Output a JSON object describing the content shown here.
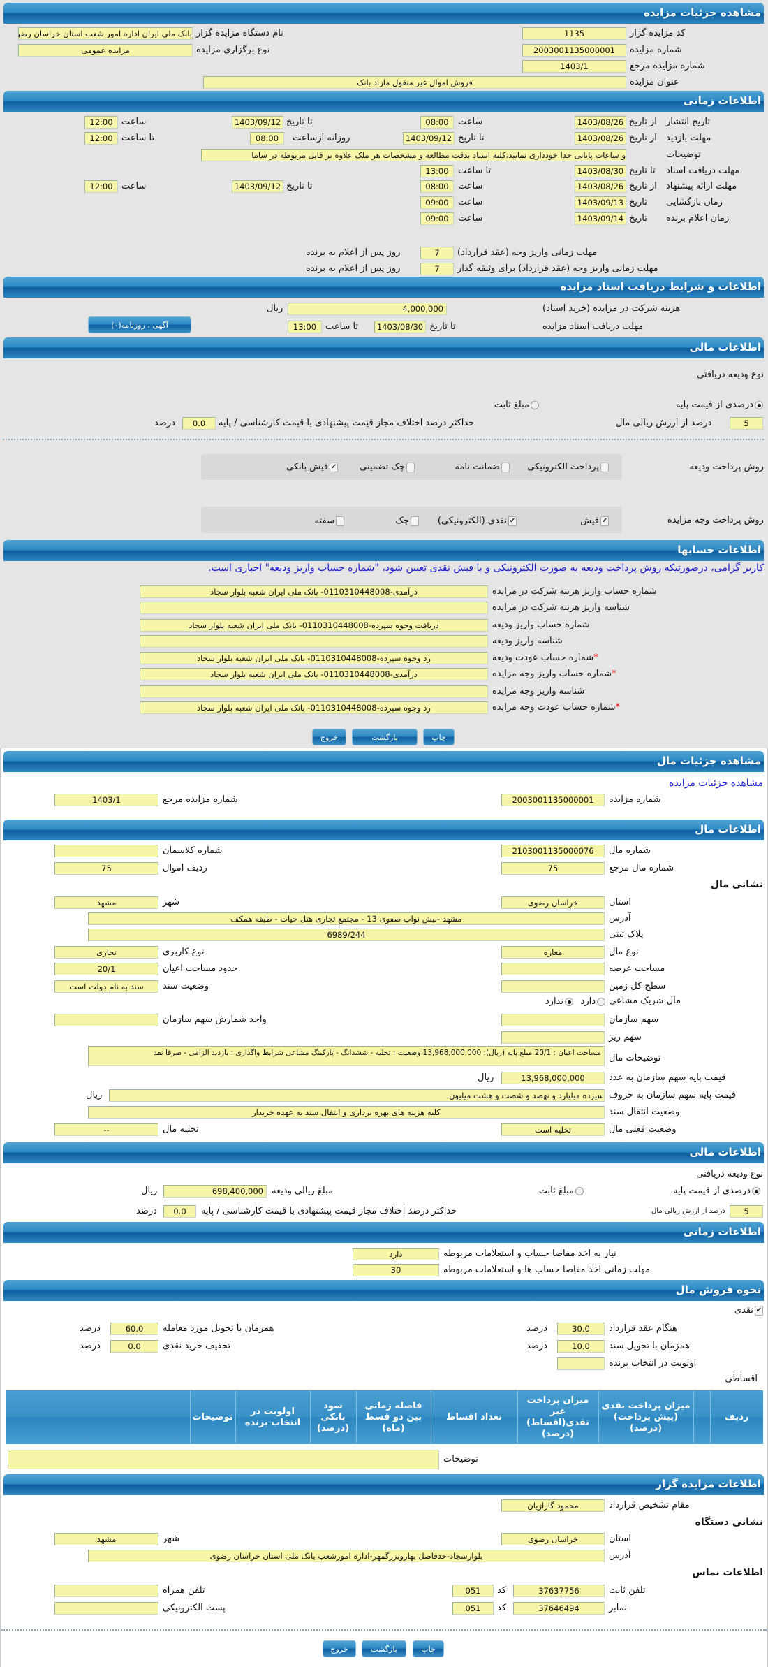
{
  "common": {
    "saat": "ساعت",
    "ta_tarikh": "تا تاریخ",
    "az_tarikh": "از تاریخ",
    "ta_saat": "تا ساعت",
    "tarikh": "تاریخ",
    "rial": "ریال",
    "darsad": "درصد",
    "kod": "کد",
    "rooz": "روز پس از اعلام به برنده"
  },
  "auction": {
    "title": "مشاهده جزئیات مزایده",
    "code_label": "کد مزایده گزار",
    "code": "1135",
    "org_label": "نام دستگاه مزایده گزار",
    "org": "بانک ملي ايران اداره امور شعب استان خراسان رضوی",
    "number_label": "شماره مزایده",
    "number": "2003001135000001",
    "type_label": "نوع برگزاری مزایده",
    "type": "مزایده عمومی",
    "ref_label": "شماره مزایده مرجع",
    "ref": "1403/1",
    "subject_label": "عنوان مزایده",
    "subject": "فروش اموال غیر منقول مازاد بانک"
  },
  "timing": {
    "title": "اطلاعات زمانی",
    "publish": {
      "label": "تاریخ انتشار",
      "from_date": "1403/08/26",
      "from_time": "08:00",
      "to_date": "1403/09/12",
      "to_time": "12:00"
    },
    "visit": {
      "label": "مهلت بازدید",
      "from_date": "1403/08/26",
      "to_date": "1403/09/12",
      "daily_label": "روزانه ازساعت",
      "from_time": "08:00",
      "to_time": "12:00"
    },
    "desc_label": "توضیحات",
    "desc": "و ساعات پایانی جدا خودداری نمایید.کلیه اسناد بدقت مطالعه و مشخصات هر ملک علاوه بر فایل مربوطه در ساما",
    "docs": {
      "label": "مهلت دریافت اسناد",
      "to_date": "1403/08/30",
      "to_time": "13:00"
    },
    "offer": {
      "label": "مهلت ارائه پیشنهاد",
      "from_date": "1403/08/26",
      "from_time": "08:00",
      "to_date": "1403/09/12",
      "to_time": "12:00"
    },
    "opening": {
      "label": "زمان بازگشایی",
      "date": "1403/09/13",
      "time": "09:00"
    },
    "winner": {
      "label": "زمان اعلام برنده",
      "date": "1403/09/14",
      "time": "09:00"
    },
    "pay1_label": "مهلت زمانی واریز وجه (عقد قرارداد)",
    "pay1": "7",
    "pay2_label": "مهلت زمانی واریز وجه (عقد قرارداد) برای وثیقه گذار",
    "pay2": "7"
  },
  "docs": {
    "title": "اطلاعات و شرایط دریافت اسناد مزایده",
    "fee_label": "هزینه شرکت در مزایده (خرید اسناد)",
    "fee": "4,000,000",
    "deadline_label": "مهلت دریافت اسناد مزایده",
    "to_date": "1403/08/30",
    "to_time": "13:00",
    "ads_button": "آگهی ، روزنامه(۰)"
  },
  "finance": {
    "title": "اطلاعات مالی",
    "deposit_type_label": "نوع ودیعه دریافتی",
    "radio_percent": "درصدی از قیمت پایه",
    "radio_fixed": "مبلغ ثابت",
    "percent": "5",
    "percent_label": "درصد از ارزش ریالی مال",
    "max_diff_label": "حداکثر درصد اختلاف مجاز قیمت پیشنهادی با قیمت کارشناسی / پایه",
    "max_diff": "0.0",
    "deposit_method_label": "روش پرداخت ودیعه",
    "deposit_methods": [
      {
        "label": "پرداخت الکترونیکی",
        "checked": false
      },
      {
        "label": "ضمانت نامه",
        "checked": false
      },
      {
        "label": "چک تضمینی",
        "checked": false
      },
      {
        "label": "فیش بانکی",
        "checked": true
      }
    ],
    "payment_method_label": "روش پرداخت وجه مزایده",
    "payment_methods": [
      {
        "label": "فیش",
        "checked": true
      },
      {
        "label": "نقدی (الکترونیکی)",
        "checked": true
      },
      {
        "label": "چک",
        "checked": false
      },
      {
        "label": "سفته",
        "checked": false
      }
    ]
  },
  "accounts": {
    "title": "اطلاعات حسابها",
    "notice": "کاربر گرامی، درصورتیکه روش پرداخت ودیعه به صورت الکترونیکی و یا فیش نقدی تعیین شود، \"شماره حساب واریز ودیعه\" اجباری است.",
    "rows": [
      {
        "label": "شماره حساب واریز هزینه شرکت در مزایده",
        "value": "درآمدی-0110310448008- بانک ملی ایران شعبه بلوار سجاد",
        "required": false
      },
      {
        "label": "شناسه واریز هزینه شرکت در مزایده",
        "value": "",
        "required": false
      },
      {
        "label": "شماره حساب واریز ودیعه",
        "value": "دریافت وجوه سپرده-0110310448008- بانک ملی ایران شعبه بلوار سجاد",
        "required": false
      },
      {
        "label": "شناسه واریز ودیعه",
        "value": "",
        "required": false
      },
      {
        "label": "شماره حساب عودت ودیعه",
        "value": "رد وجوه سپرده-0110310448008- بانک ملی ایران شعبه بلوار سجاد",
        "required": true
      },
      {
        "label": "شماره حساب واریز وجه مزایده",
        "value": "درآمدی-0110310448008- بانک ملی ایران شعبه بلوار سجاد",
        "required": true
      },
      {
        "label": "شناسه واریز وجه مزایده",
        "value": "",
        "required": false
      },
      {
        "label": "شماره حساب عودت وجه مزایده",
        "value": "رد وجوه سپرده-0110310448008- بانک ملی ایران شعبه بلوار سجاد",
        "required": true
      }
    ],
    "required_mark": "*"
  },
  "buttons": {
    "print": "چاپ",
    "back": "بازگشت",
    "exit": "خروج"
  },
  "item": {
    "title": "مشاهده جزئیات مال",
    "link": "مشاهده جزئیات مزایده",
    "auction_number_label": "شماره مزایده",
    "auction_number": "2003001135000001",
    "ref_label": "شماره مزایده مرجع",
    "ref": "1403/1"
  },
  "item_info": {
    "title": "اطلاعات مال",
    "number_label": "شماره مال",
    "number": "2103001135000076",
    "class_label": "شماره کلاسمان",
    "class": "",
    "ref_label": "شماره مال مرجع",
    "ref": "75",
    "row_label": "ردیف اموال",
    "row": "75",
    "address_title": "نشانی مال",
    "province_label": "استان",
    "province": "خراسان رضوی",
    "city_label": "شهر",
    "city": "مشهد",
    "address_label": "آدرس",
    "address": "مشهد -نبش نواب صفوی 13 - مجتمع تجاری هتل حیات - طبقه همکف",
    "plate_label": "پلاک ثبتی",
    "plate": "6989/244",
    "kind_label": "نوع مال",
    "kind": "مغازه",
    "usage_label": "نوع کاربری",
    "usage": "تجاری",
    "land_area_label": "مساحت عرصه",
    "land_area": "",
    "building_area_label": "حدود مساحت اعیان",
    "building_area": "20/1",
    "total_land_label": "سطح کل زمین",
    "total_land": "",
    "deed_label": "وضعیت سند",
    "deed": "سند به نام دولت است",
    "shared_label": "مال شریک مشاعی",
    "shared_yes": "دارد",
    "shared_no": "ندارد",
    "shared": "ندارد",
    "share_label": "سهم سازمان",
    "share": "",
    "share_unit_label": "واحد شمارش سهم سازمان",
    "share_unit": "",
    "subshare_label": "سهم ریز",
    "subshare": "",
    "desc_label": "توضیحات مال",
    "desc": "مساحت اعیان : 20/1 مبلغ پایه (ریال): 13,968,000,000 وضعیت : تخلیه - ششدانگ - پارکینگ مشاعی شرایط واگذاری : بازدید الزامی - صرفا نقد",
    "price_num_label": "قیمت پایه سهم سازمان به عدد",
    "price_num": "13,968,000,000",
    "price_text_label": "قیمت پایه سهم سازمان به حروف",
    "price_text": "سیزده میلیارد و نهصد و شصت و هشت میلیون",
    "transfer_label": "وضعیت انتقال سند",
    "transfer": "کلیه هزینه های بهره برداری و انتقال سند به عهده خریدار",
    "status_label": "وضعیت فعلی مال",
    "status": "تخلیه است",
    "evac_label": "تخلیه مال",
    "evac": "--"
  },
  "item_finance": {
    "title": "اطلاعات مالی",
    "deposit_type_label": "نوع ودیعه دریافتی",
    "radio_percent": "درصدی از قیمت پایه",
    "radio_fixed": "مبلغ ثابت",
    "deposit_amount_label": "مبلغ ریالی ودیعه",
    "deposit_amount": "698,400,000",
    "percent": "5",
    "percent_label": "درصد از ارزش ریالی مال",
    "max_diff_label": "حداکثر درصد اختلاف مجاز قیمت پیشنهادی با قیمت کارشناسی / پایه",
    "max_diff": "0.0"
  },
  "item_timing": {
    "title": "اطلاعات زمانی",
    "clearance_label": "نیاز به اخذ مفاصا حساب و استعلامات مربوطه",
    "clearance": "دارد",
    "clearance_days_label": "مهلت زمانی اخذ مفاصا حساب ها و استعلامات مربوطه",
    "clearance_days": "30"
  },
  "sale": {
    "title": "نحوه فروش مال",
    "cash_label": "نقدی",
    "cash_checked": true,
    "contract_label": "هنگام عقد قرارداد",
    "contract": "30.0",
    "delivery_label": "همزمان با تحویل مورد معامله",
    "delivery": "60.0",
    "deed_label": "همزمان با تحویل سند",
    "deed": "10.0",
    "discount_label": "تخفیف خرید نقدی",
    "discount": "0.0",
    "priority_label": "اولویت در انتخاب برنده",
    "priority": "",
    "installment_label": "اقساطی",
    "columns": [
      "ردیف",
      "",
      "میزان پرداخت نقدی (پیش پرداخت) (درصد)",
      "میزان پرداخت غیر نقدی(اقساط) (درصد)",
      "تعداد اقساط",
      "فاصله زمانی بین دو قسط (ماه)",
      "سود بانکی (درصد)",
      "اولویت در انتخاب برنده",
      "توضیحات",
      ""
    ],
    "notes_label": "توضیحات",
    "notes": ""
  },
  "auctioneer": {
    "title": "اطلاعات مزایده گزار",
    "authority_label": "مقام تشخیص قرارداد",
    "authority": "محمود گاراژیان",
    "address_title": "نشانی دستگاه",
    "province_label": "استان",
    "province": "خراسان رضوی",
    "city_label": "شهر",
    "city": "مشهد",
    "address_label": "آدرس",
    "address": "بلوارسجاد-حدفاصل بهاروبزرگمهر-اداره امورشعب بانک ملی استان خراسان رضوی",
    "contact_title": "اطلاعات تماس",
    "phone_label": "تلفن ثابت",
    "phone": "37637756",
    "phone_code": "051",
    "mobile_label": "تلفن همراه",
    "mobile": "",
    "fax_label": "نمابر",
    "fax": "37646494",
    "fax_code": "051",
    "email_label": "پست الکترونیکی",
    "email": ""
  },
  "colors": {
    "header": "#2f8ac4",
    "input": "#f7f5a7",
    "link": "#1a1ad0",
    "required": "#e00000"
  }
}
